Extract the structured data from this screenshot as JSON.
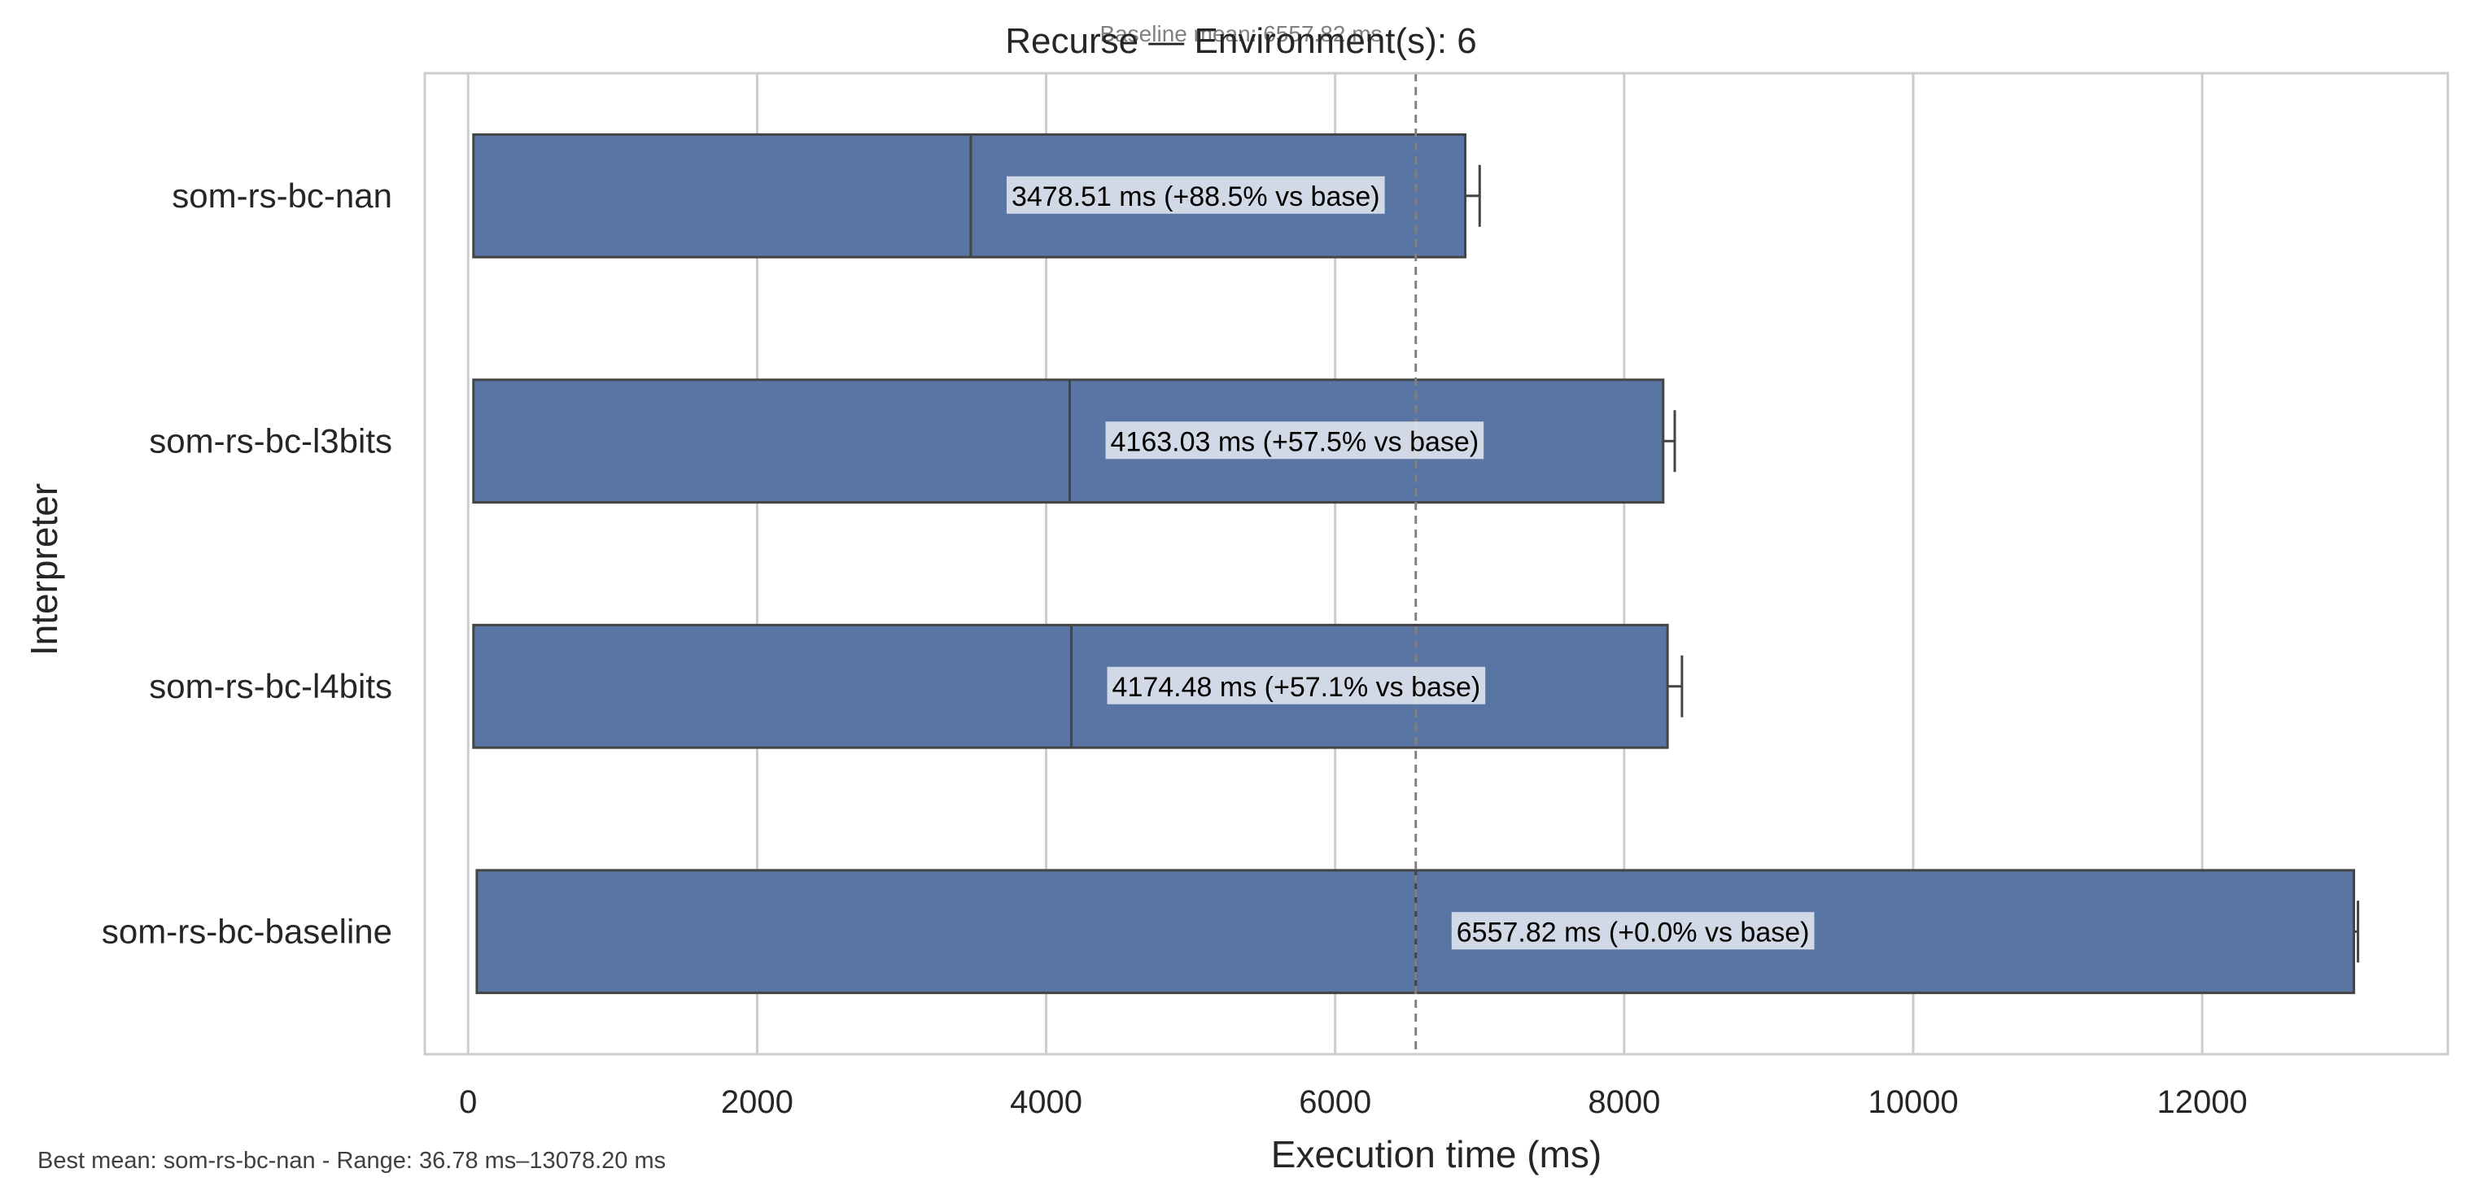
{
  "chart_data": {
    "type": "bar",
    "orientation": "horizontal",
    "title": "Recurse — Environment(s): 6",
    "baseline_note": "Baseline mean: 6557.82 ms",
    "baseline_value": 6557.82,
    "xlabel": "Execution time (ms)",
    "ylabel": "Interpreter",
    "xlim": [
      -300,
      13700
    ],
    "xticks": [
      0,
      2000,
      4000,
      6000,
      8000,
      10000,
      12000
    ],
    "grid": true,
    "bar_color": "#5975a4",
    "categories": [
      "som-rs-bc-nan",
      "som-rs-bc-l3bits",
      "som-rs-bc-l4bits",
      "som-rs-bc-baseline"
    ],
    "bars": [
      {
        "min": 36.78,
        "mean": 3478.51,
        "max": 6900,
        "whisker": 7000,
        "label": "3478.51 ms  (+88.5% vs base)"
      },
      {
        "min": 36.78,
        "mean": 4163.03,
        "max": 8270,
        "whisker": 8350,
        "label": "4163.03 ms  (+57.5% vs base)"
      },
      {
        "min": 36.78,
        "mean": 4174.48,
        "max": 8300,
        "whisker": 8400,
        "label": "4174.48 ms  (+57.1% vs base)"
      },
      {
        "min": 60,
        "mean": 6557.82,
        "max": 13050,
        "whisker": 13078.2,
        "label": "6557.82 ms  (+0.0% vs base)"
      }
    ],
    "footer": "Best mean: som-rs-bc-nan - Range: 36.78 ms–13078.20 ms"
  }
}
